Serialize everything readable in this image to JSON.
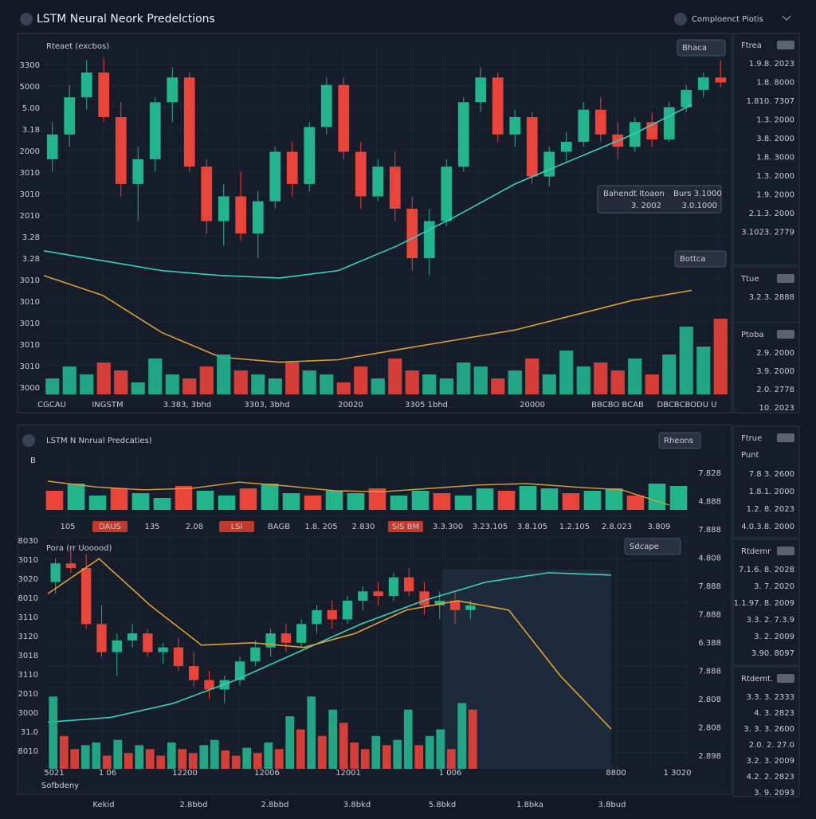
{
  "header": {
    "title": "LSTM Neural Neork Predelctions",
    "right": "Comploenct Piotis"
  },
  "top_panel": {
    "legend": "Rteaet (excbos)",
    "button1": "Bhaca",
    "button2": "Bottca",
    "tooltip": {
      "label1": "Bahendt Itoaon",
      "value1": "3. 2002",
      "label2": "Burs 3.1000",
      "value2": "3.0.1000"
    },
    "y_labels": [
      "3300",
      "5000",
      "5.00",
      "3.18",
      "2000",
      "3010",
      "3010",
      "2010",
      "3.28",
      "3.28",
      "3010",
      "3010",
      "3010",
      "3010",
      "3010",
      "3000"
    ],
    "x_labels": [
      "CGCAU",
      "INGSTM",
      "3.383, 3bhd",
      "3303, 3bhd",
      "20020",
      "3305 1bhd",
      "20000",
      "BBCBO BCAB",
      "DBCBCBODU U"
    ],
    "chart": {
      "type": "candlestick",
      "ylim": [
        -40,
        100
      ],
      "up_color": "#22b58c",
      "down_color": "#e8443a",
      "candles": [
        [
          55,
          70,
          50,
          65
        ],
        [
          65,
          85,
          60,
          80
        ],
        [
          80,
          95,
          75,
          90
        ],
        [
          90,
          96,
          70,
          72
        ],
        [
          72,
          78,
          40,
          45
        ],
        [
          45,
          60,
          30,
          55
        ],
        [
          55,
          80,
          50,
          78
        ],
        [
          78,
          92,
          70,
          88
        ],
        [
          88,
          90,
          50,
          52
        ],
        [
          52,
          55,
          25,
          30
        ],
        [
          30,
          45,
          20,
          40
        ],
        [
          40,
          50,
          22,
          25
        ],
        [
          25,
          42,
          15,
          38
        ],
        [
          38,
          60,
          35,
          58
        ],
        [
          58,
          62,
          40,
          45
        ],
        [
          45,
          70,
          42,
          68
        ],
        [
          68,
          88,
          65,
          85
        ],
        [
          85,
          88,
          55,
          58
        ],
        [
          58,
          62,
          35,
          40
        ],
        [
          40,
          55,
          38,
          52
        ],
        [
          52,
          58,
          30,
          35
        ],
        [
          35,
          40,
          10,
          15
        ],
        [
          15,
          35,
          8,
          30
        ],
        [
          30,
          55,
          28,
          52
        ],
        [
          52,
          80,
          50,
          78
        ],
        [
          78,
          92,
          74,
          88
        ],
        [
          88,
          90,
          62,
          65
        ],
        [
          65,
          75,
          60,
          72
        ],
        [
          72,
          74,
          45,
          48
        ],
        [
          48,
          60,
          44,
          58
        ],
        [
          58,
          66,
          54,
          62
        ],
        [
          62,
          78,
          60,
          75
        ],
        [
          75,
          80,
          62,
          65
        ],
        [
          65,
          70,
          55,
          60
        ],
        [
          60,
          72,
          58,
          70
        ],
        [
          70,
          74,
          60,
          63
        ],
        [
          63,
          78,
          62,
          76
        ],
        [
          76,
          85,
          74,
          83
        ],
        [
          83,
          90,
          80,
          88
        ],
        [
          88,
          95,
          84,
          86
        ]
      ],
      "lines": [
        {
          "color": "#36d1c0",
          "values": [
            18,
            14,
            10,
            8,
            7,
            10,
            20,
            32,
            45,
            55,
            65,
            77
          ]
        },
        {
          "color": "#e0a030",
          "values": [
            8,
            0,
            -15,
            -25,
            -27,
            -26,
            -22,
            -18,
            -14,
            -8,
            -2,
            2
          ]
        }
      ],
      "volume": {
        "ylim": [
          0,
          100
        ],
        "values": [
          20,
          35,
          25,
          40,
          30,
          15,
          45,
          25,
          20,
          35,
          50,
          30,
          25,
          20,
          40,
          30,
          25,
          15,
          35,
          20,
          45,
          30,
          25,
          20,
          40,
          35,
          20,
          30,
          45,
          25,
          55,
          35,
          40,
          30,
          45,
          25,
          50,
          85,
          60,
          95
        ]
      }
    }
  },
  "sidebar_top": [
    {
      "title": "Ftrea",
      "color": "#d7dbe3",
      "values": [
        "1.9.8. 2023",
        "1.8. 8000",
        "1.810. 7307",
        "1.3. 2000",
        "3.8. 2000",
        "1.8. 3000",
        "1.3. 2000",
        "1.9. 2000",
        "2.1.3. 2000",
        "3.1023. 2779"
      ]
    },
    {
      "title": "Ttue",
      "color": "#e8443a",
      "values": [
        "3.2.3. 2888"
      ]
    },
    {
      "title": "Ptoba",
      "color": "#d7dbe3",
      "values": [
        "2.9. 2000",
        "3.9. 2000",
        "2.0. 2778",
        "10. 2023"
      ]
    }
  ],
  "bottom_panel": {
    "title": "LSTM N Nnrual Predcaties)",
    "button1": "Rheons",
    "button2": "Sdcape",
    "mini_label": "B",
    "legend": "Pora (rr Uooood)",
    "footer": "Sofbdeny",
    "tags": [
      "105",
      "DAUS",
      "135",
      "2.08",
      "LSI",
      "BAGB",
      "1.8. 205",
      "2.830",
      "SIS BM",
      "3.3.300",
      "3.23.105",
      "3.8.105",
      "1.2.105",
      "2.8.023",
      "3.809"
    ],
    "y_labels": [
      "8030",
      "3010",
      "3020",
      "8010",
      "3110",
      "3120",
      "3018",
      "3110",
      "2010",
      "3000",
      "31.0",
      "8010"
    ],
    "x_labels": [
      "5021",
      "1 06",
      "12200",
      "12006",
      "12001",
      "1 006",
      "8800",
      "1 3020"
    ],
    "right_axis": [
      "7.828",
      "4.888",
      "7.888",
      "4.808",
      "7.888",
      "7.888",
      "6.388",
      "7.888",
      "2.808",
      "2.808",
      "2.898"
    ],
    "bottom_labels": [
      "Kekid",
      "2.8bbd",
      "2.8bbd",
      "3.8bkd",
      "5.8bkd",
      "1.8bka",
      "3.8bud"
    ],
    "mini": {
      "ylim": [
        0,
        100
      ],
      "volume": [
        40,
        55,
        30,
        45,
        35,
        25,
        50,
        40,
        30,
        45,
        55,
        35,
        30,
        40,
        35,
        45,
        30,
        40,
        35,
        30,
        45,
        40,
        50,
        45,
        35,
        40,
        45,
        30,
        55,
        50
      ],
      "lines": [
        {
          "color": "#e0a030",
          "values": [
            60,
            48,
            42,
            45,
            58,
            50,
            40,
            38,
            45,
            52,
            55,
            48,
            42,
            10
          ]
        }
      ]
    },
    "chart": {
      "type": "candlestick",
      "ylim": [
        0,
        100
      ],
      "up_color": "#22b58c",
      "down_color": "#e8443a",
      "candles": [
        [
          80,
          90,
          75,
          88
        ],
        [
          88,
          95,
          84,
          86
        ],
        [
          86,
          92,
          60,
          62
        ],
        [
          62,
          70,
          48,
          50
        ],
        [
          50,
          58,
          40,
          55
        ],
        [
          55,
          62,
          52,
          58
        ],
        [
          58,
          60,
          48,
          50
        ],
        [
          50,
          54,
          45,
          52
        ],
        [
          52,
          56,
          42,
          44
        ],
        [
          44,
          50,
          35,
          38
        ],
        [
          38,
          42,
          30,
          34
        ],
        [
          34,
          40,
          28,
          38
        ],
        [
          38,
          48,
          36,
          46
        ],
        [
          46,
          55,
          44,
          52
        ],
        [
          52,
          60,
          48,
          58
        ],
        [
          58,
          62,
          50,
          54
        ],
        [
          54,
          64,
          52,
          62
        ],
        [
          62,
          70,
          58,
          68
        ],
        [
          68,
          72,
          60,
          64
        ],
        [
          64,
          74,
          62,
          72
        ],
        [
          72,
          78,
          68,
          76
        ],
        [
          76,
          80,
          70,
          74
        ],
        [
          74,
          84,
          72,
          82
        ],
        [
          82,
          86,
          74,
          76
        ],
        [
          76,
          80,
          66,
          70
        ],
        [
          70,
          76,
          64,
          72
        ],
        [
          72,
          76,
          62,
          68
        ],
        [
          68,
          72,
          64,
          70
        ]
      ],
      "lines": [
        {
          "color": "#36d1c0",
          "values": [
            20,
            22,
            28,
            38,
            50,
            62,
            72,
            80,
            84,
            83
          ]
        },
        {
          "color": "#e0a030",
          "values": [
            75,
            90,
            70,
            53,
            54,
            52,
            58,
            68,
            72,
            68,
            40,
            17
          ]
        }
      ],
      "volume": {
        "ylim": [
          0,
          100
        ],
        "values": [
          55,
          25,
          15,
          18,
          20,
          10,
          22,
          12,
          18,
          15,
          10,
          20,
          15,
          12,
          18,
          22,
          14,
          10,
          16,
          12,
          20,
          15,
          40,
          30,
          55,
          25,
          45,
          35,
          20,
          15,
          25,
          18,
          22,
          45,
          18,
          25,
          30,
          15,
          50,
          45
        ]
      }
    }
  },
  "sidebar_bottom": [
    {
      "title": "Ftrue",
      "badge": "Punt",
      "color": "#22c08e",
      "values": [
        "7.8 3. 2600",
        "1.8.1. 2000",
        "1.2. 8. 2023",
        "4.0.3.8. 2000"
      ]
    },
    {
      "title": "Rtdemr",
      "color": "#f08a3a",
      "values": [
        "7.1.6. 8. 2028",
        "3. 7. 2020",
        "1.1.97. 8. 2009",
        "3.3. 2. 7.3.9",
        "3. 2. 2009",
        "3.90. 8097"
      ]
    },
    {
      "title": "Rtdemt.",
      "color": "#9ccf3a",
      "values": [
        "3.3. 3. 2333",
        "4. 3. 2823",
        "3. 3. 3. 2600",
        "2.0. 2. 27.0",
        "3.2. 3. 2009",
        "4.2. 2. 2823",
        "3. 9. 2093"
      ]
    }
  ]
}
